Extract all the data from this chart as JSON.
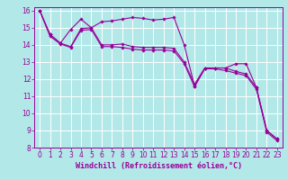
{
  "background_color": "#b2e8e8",
  "grid_color": "#ffffff",
  "line_color": "#990099",
  "xlabel": "Windchill (Refroidissement éolien,°C)",
  "xlabel_fontsize": 6,
  "tick_fontsize": 5.5,
  "xlim": [
    -0.5,
    23.5
  ],
  "ylim": [
    8,
    16.2
  ],
  "yticks": [
    8,
    9,
    10,
    11,
    12,
    13,
    14,
    15,
    16
  ],
  "xticks": [
    0,
    1,
    2,
    3,
    4,
    5,
    6,
    7,
    8,
    9,
    10,
    11,
    12,
    13,
    14,
    15,
    16,
    17,
    18,
    19,
    20,
    21,
    22,
    23
  ],
  "series": [
    {
      "x": [
        0,
        1,
        2,
        3,
        4,
        5,
        6,
        7,
        8,
        9,
        10,
        11,
        12,
        13,
        14,
        15,
        16,
        17,
        18,
        19,
        20,
        21,
        22,
        23
      ],
      "y": [
        16.0,
        14.6,
        14.1,
        14.9,
        15.5,
        15.0,
        15.35,
        15.4,
        15.5,
        15.6,
        15.55,
        15.45,
        15.5,
        15.6,
        14.0,
        11.6,
        12.65,
        12.65,
        12.65,
        12.9,
        12.9,
        11.5,
        9.0,
        8.5
      ]
    },
    {
      "x": [
        0,
        1,
        2,
        3,
        4,
        5,
        6,
        7,
        8,
        9,
        10,
        11,
        12,
        13,
        14,
        15,
        16,
        17,
        18,
        19,
        20,
        21,
        22,
        23
      ],
      "y": [
        16.0,
        14.6,
        14.1,
        13.9,
        14.95,
        15.0,
        14.0,
        14.0,
        14.05,
        13.9,
        13.85,
        13.85,
        13.85,
        13.8,
        13.0,
        11.7,
        12.65,
        12.65,
        12.65,
        12.45,
        12.3,
        11.5,
        9.0,
        8.5
      ]
    },
    {
      "x": [
        0,
        1,
        2,
        3,
        4,
        5,
        6,
        7,
        8,
        9,
        10,
        11,
        12,
        13,
        14,
        15,
        16,
        17,
        18,
        19,
        20,
        21,
        22,
        23
      ],
      "y": [
        16.0,
        14.5,
        14.05,
        13.85,
        14.85,
        14.9,
        13.9,
        13.9,
        13.85,
        13.75,
        13.7,
        13.7,
        13.7,
        13.65,
        12.9,
        11.55,
        12.6,
        12.6,
        12.5,
        12.35,
        12.2,
        11.4,
        8.9,
        8.4
      ]
    }
  ]
}
